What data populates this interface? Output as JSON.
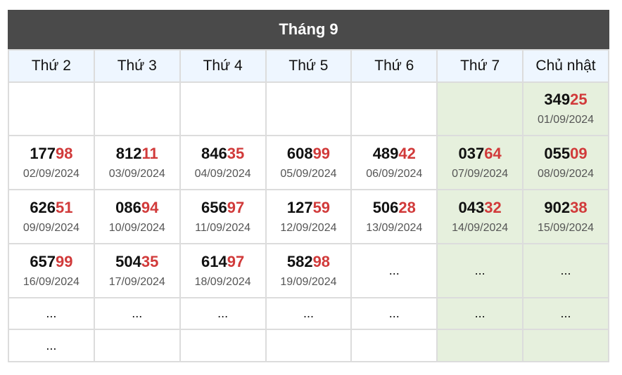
{
  "title": "Tháng 9",
  "headers": [
    "Thứ 2",
    "Thứ 3",
    "Thứ 4",
    "Thứ 5",
    "Thứ 6",
    "Thứ 7",
    "Chủ nhật"
  ],
  "rows": [
    [
      {
        "type": "empty"
      },
      {
        "type": "empty"
      },
      {
        "type": "empty"
      },
      {
        "type": "empty"
      },
      {
        "type": "empty"
      },
      {
        "type": "empty"
      },
      {
        "type": "result",
        "head": "349",
        "tail": "25",
        "date": "01/09/2024"
      }
    ],
    [
      {
        "type": "result",
        "head": "177",
        "tail": "98",
        "date": "02/09/2024"
      },
      {
        "type": "result",
        "head": "812",
        "tail": "11",
        "date": "03/09/2024"
      },
      {
        "type": "result",
        "head": "846",
        "tail": "35",
        "date": "04/09/2024"
      },
      {
        "type": "result",
        "head": "608",
        "tail": "99",
        "date": "05/09/2024"
      },
      {
        "type": "result",
        "head": "489",
        "tail": "42",
        "date": "06/09/2024"
      },
      {
        "type": "result",
        "head": "037",
        "tail": "64",
        "date": "07/09/2024"
      },
      {
        "type": "result",
        "head": "055",
        "tail": "09",
        "date": "08/09/2024"
      }
    ],
    [
      {
        "type": "result",
        "head": "626",
        "tail": "51",
        "date": "09/09/2024"
      },
      {
        "type": "result",
        "head": "086",
        "tail": "94",
        "date": "10/09/2024"
      },
      {
        "type": "result",
        "head": "656",
        "tail": "97",
        "date": "11/09/2024"
      },
      {
        "type": "result",
        "head": "127",
        "tail": "59",
        "date": "12/09/2024"
      },
      {
        "type": "result",
        "head": "506",
        "tail": "28",
        "date": "13/09/2024"
      },
      {
        "type": "result",
        "head": "043",
        "tail": "32",
        "date": "14/09/2024"
      },
      {
        "type": "result",
        "head": "902",
        "tail": "38",
        "date": "15/09/2024"
      }
    ],
    [
      {
        "type": "result",
        "head": "657",
        "tail": "99",
        "date": "16/09/2024"
      },
      {
        "type": "result",
        "head": "504",
        "tail": "35",
        "date": "17/09/2024"
      },
      {
        "type": "result",
        "head": "614",
        "tail": "97",
        "date": "18/09/2024"
      },
      {
        "type": "result",
        "head": "582",
        "tail": "98",
        "date": "19/09/2024"
      },
      {
        "type": "dots",
        "text": "..."
      },
      {
        "type": "dots",
        "text": "..."
      },
      {
        "type": "dots",
        "text": "..."
      }
    ],
    [
      {
        "type": "dots",
        "text": "..."
      },
      {
        "type": "dots",
        "text": "..."
      },
      {
        "type": "dots",
        "text": "..."
      },
      {
        "type": "dots",
        "text": "..."
      },
      {
        "type": "dots",
        "text": "..."
      },
      {
        "type": "dots",
        "text": "..."
      },
      {
        "type": "dots",
        "text": "..."
      }
    ],
    [
      {
        "type": "dots",
        "text": "..."
      },
      {
        "type": "empty"
      },
      {
        "type": "empty"
      },
      {
        "type": "empty"
      },
      {
        "type": "empty"
      },
      {
        "type": "empty"
      },
      {
        "type": "empty"
      }
    ]
  ],
  "colors": {
    "header_bg": "#4a4a4a",
    "weekday_bg": "#eef6ff",
    "weekend_bg": "#e6f0dd",
    "tail_digits": "#d13a3a"
  }
}
